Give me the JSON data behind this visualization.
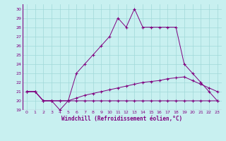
{
  "xlabel": "Windchill (Refroidissement éolien,°C)",
  "bg_color": "#c8f0f0",
  "grid_color": "#a0d8d8",
  "line_color": "#800080",
  "xlim": [
    -0.5,
    23.5
  ],
  "ylim": [
    19,
    30.5
  ],
  "xticks": [
    0,
    1,
    2,
    3,
    4,
    5,
    6,
    7,
    8,
    9,
    10,
    11,
    12,
    13,
    14,
    15,
    16,
    17,
    18,
    19,
    20,
    21,
    22,
    23
  ],
  "yticks": [
    19,
    20,
    21,
    22,
    23,
    24,
    25,
    26,
    27,
    28,
    29,
    30
  ],
  "line1_x": [
    0,
    1,
    2,
    3,
    4,
    5,
    6,
    7,
    8,
    9,
    10,
    11,
    12,
    13,
    14,
    15,
    16,
    17,
    18,
    19,
    20,
    21,
    22,
    23
  ],
  "line1_y": [
    21,
    21,
    20,
    20,
    20,
    20,
    20,
    20,
    20,
    20,
    20,
    20,
    20,
    20,
    20,
    20,
    20,
    20,
    20,
    20,
    20,
    20,
    20,
    20
  ],
  "line2_x": [
    0,
    1,
    2,
    3,
    4,
    5,
    6,
    7,
    8,
    9,
    10,
    11,
    12,
    13,
    14,
    15,
    16,
    17,
    18,
    19,
    20,
    21,
    22,
    23
  ],
  "line2_y": [
    21,
    21,
    20,
    20,
    20,
    20,
    20.3,
    20.6,
    20.8,
    21.0,
    21.2,
    21.4,
    21.6,
    21.8,
    22.0,
    22.1,
    22.2,
    22.4,
    22.5,
    22.6,
    22.2,
    21.8,
    21.4,
    21.0
  ],
  "line3_x": [
    0,
    1,
    2,
    3,
    4,
    5,
    6,
    7,
    8,
    9,
    10,
    11,
    12,
    13,
    14,
    15,
    16,
    17,
    18,
    19,
    20,
    21,
    22,
    23
  ],
  "line3_y": [
    21,
    21,
    20,
    20,
    19,
    20,
    23,
    24,
    25,
    26,
    27,
    29,
    28,
    30,
    28,
    28,
    28,
    28,
    28,
    24,
    23,
    22,
    21,
    20
  ]
}
